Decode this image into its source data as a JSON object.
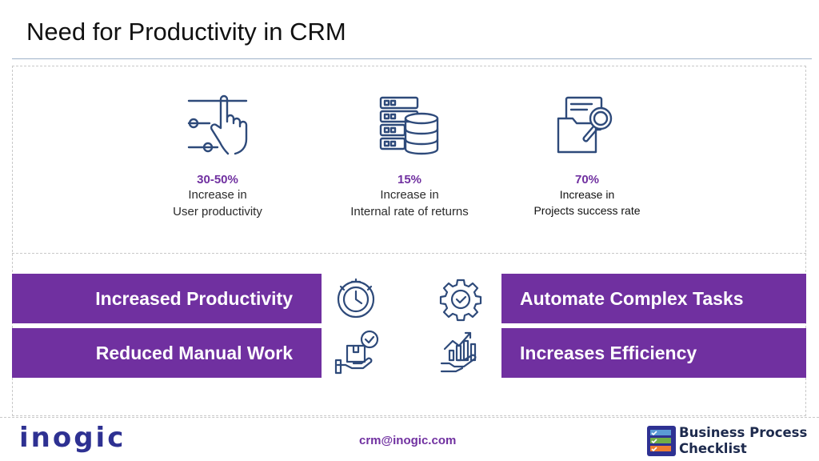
{
  "title": "Need for Productivity in CRM",
  "stats": [
    {
      "value": "30-50%",
      "line1": "Increase in",
      "line2": "User productivity",
      "icon": "touch-sliders-icon"
    },
    {
      "value": "15%",
      "line1": "Increase in",
      "line2": "Internal rate of returns",
      "icon": "database-server-icon"
    },
    {
      "value": "70%",
      "line1": "Increase in",
      "line2": "Projects success rate",
      "icon": "folder-search-icon"
    }
  ],
  "benefits": {
    "increased_productivity": "Increased Productivity",
    "automate_complex_tasks": "Automate Complex Tasks",
    "reduced_manual_work": "Reduced Manual Work",
    "increases_efficiency": "Increases Efficiency"
  },
  "footer": {
    "logo": "inogic",
    "email": "crm@inogic.com",
    "brand_line1": "Business Process",
    "brand_line2": "Checklist"
  },
  "colors": {
    "accent": "#7030a0",
    "icon": "#2e4a7a",
    "logo": "#2e3192"
  }
}
